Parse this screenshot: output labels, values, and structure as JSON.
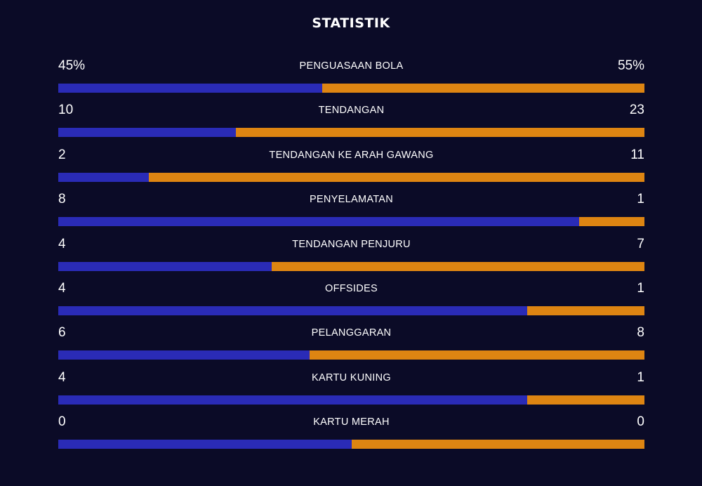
{
  "title": "STATISTIK",
  "colors": {
    "background": "#0b0b27",
    "home": "#2a2bb6",
    "away": "#de8512"
  },
  "stats": [
    {
      "label": "PENGUASAAN BOLA",
      "home": "45%",
      "away": "55%",
      "home_share": 0.45
    },
    {
      "label": "TENDANGAN",
      "home": "10",
      "away": "23",
      "home_share": 0.303
    },
    {
      "label": "TENDANGAN KE ARAH GAWANG",
      "home": "2",
      "away": "11",
      "home_share": 0.154
    },
    {
      "label": "PENYELAMATAN",
      "home": "8",
      "away": "1",
      "home_share": 0.889
    },
    {
      "label": "TENDANGAN PENJURU",
      "home": "4",
      "away": "7",
      "home_share": 0.364
    },
    {
      "label": "OFFSIDES",
      "home": "4",
      "away": "1",
      "home_share": 0.8
    },
    {
      "label": "PELANGGARAN",
      "home": "6",
      "away": "8",
      "home_share": 0.429
    },
    {
      "label": "KARTU KUNING",
      "home": "4",
      "away": "1",
      "home_share": 0.8
    },
    {
      "label": "KARTU MERAH",
      "home": "0",
      "away": "0",
      "home_share": 0.5
    }
  ]
}
